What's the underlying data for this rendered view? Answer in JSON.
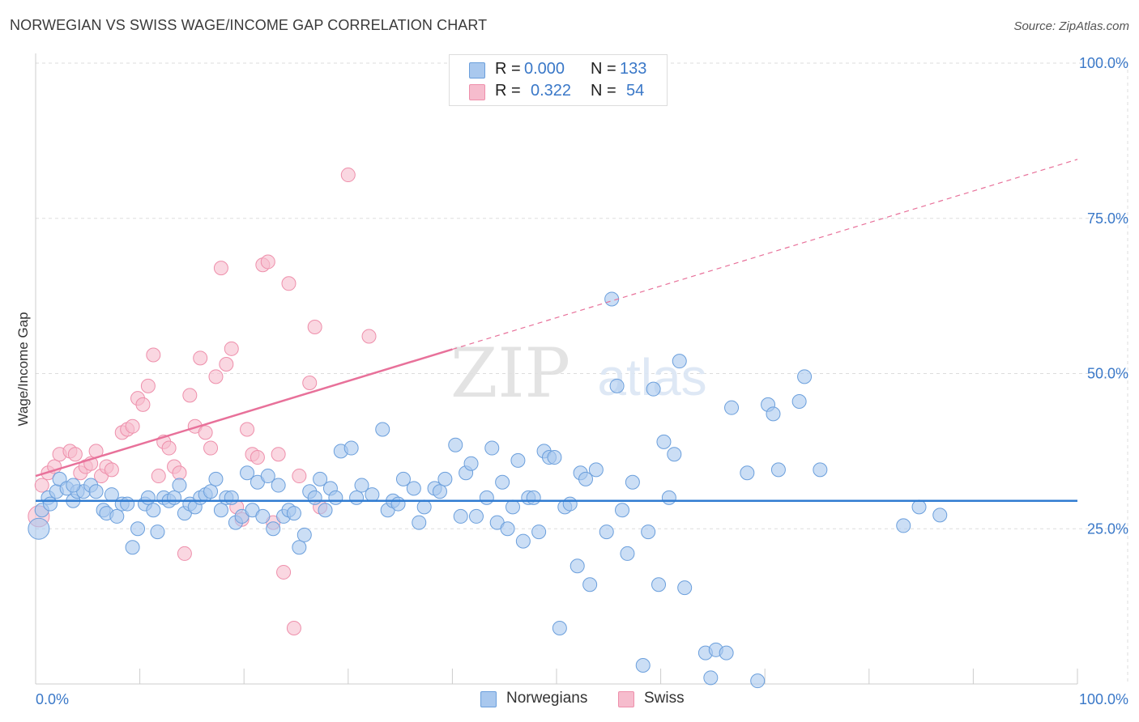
{
  "title": "NORWEGIAN VS SWISS WAGE/INCOME GAP CORRELATION CHART",
  "source": "Source: ZipAtlas.com",
  "watermark": {
    "zip": "ZIP",
    "atlas": "atlas"
  },
  "legend": {
    "rows": [
      {
        "r_label": "R =",
        "r_value": "0.000",
        "n_label": "N =",
        "n_value": "133"
      },
      {
        "r_label": "R =",
        "r_value": "0.322",
        "n_label": "N =",
        "n_value": "54"
      }
    ]
  },
  "bottom_legend": {
    "series1": "Norwegians",
    "series2": "Swiss"
  },
  "colors": {
    "blue_fill": "#a9c8ee",
    "blue_stroke": "#6b9fdc",
    "blue_line": "#2f7bd1",
    "pink_fill": "#f6bccd",
    "pink_stroke": "#ee8fab",
    "pink_line": "#e8719a",
    "axis_text": "#3a78c8",
    "grid": "#dddddd"
  },
  "chart_data": {
    "type": "scatter",
    "title": "NORWEGIAN VS SWISS WAGE/INCOME GAP CORRELATION CHART",
    "xlabel": "",
    "ylabel": "Wage/Income Gap",
    "xlim": [
      0,
      100
    ],
    "ylim": [
      0,
      100
    ],
    "x_tick_labels": [
      "0.0%",
      "100.0%"
    ],
    "y_tick_labels": [
      "25.0%",
      "50.0%",
      "75.0%",
      "100.0%"
    ],
    "y_ticks": [
      25,
      50,
      75,
      100
    ],
    "grid": true,
    "legend_position": "top-center",
    "series": [
      {
        "name": "Norwegians",
        "r": 0.0,
        "n": 133,
        "trend": {
          "x0": 0,
          "y0": 29.5,
          "x1": 100,
          "y1": 29.5,
          "solid_until": 100
        },
        "points": [
          [
            0.3,
            25
          ],
          [
            0.6,
            28
          ],
          [
            1.2,
            30
          ],
          [
            1.4,
            29
          ],
          [
            2,
            31
          ],
          [
            2.3,
            33
          ],
          [
            3,
            31.5
          ],
          [
            3.6,
            29.5
          ],
          [
            4,
            31
          ],
          [
            4.6,
            31
          ],
          [
            5.3,
            32
          ],
          [
            5.8,
            31
          ],
          [
            6.5,
            28
          ],
          [
            6.8,
            27.5
          ],
          [
            7.3,
            30.5
          ],
          [
            7.8,
            27
          ],
          [
            8.3,
            29
          ],
          [
            8.8,
            29
          ],
          [
            9.3,
            22
          ],
          [
            9.8,
            25
          ],
          [
            10.5,
            29
          ],
          [
            10.8,
            30
          ],
          [
            11.3,
            28
          ],
          [
            11.7,
            24.5
          ],
          [
            12.3,
            30
          ],
          [
            12.8,
            29.5
          ],
          [
            13.3,
            30
          ],
          [
            13.8,
            32
          ],
          [
            14.3,
            27.5
          ],
          [
            14.8,
            29
          ],
          [
            15.3,
            28.5
          ],
          [
            15.8,
            30
          ],
          [
            16.3,
            30.5
          ],
          [
            16.8,
            31
          ],
          [
            17.3,
            33
          ],
          [
            17.8,
            28
          ],
          [
            18.3,
            30
          ],
          [
            18.8,
            30
          ],
          [
            19.2,
            26
          ],
          [
            19.8,
            27
          ],
          [
            20.3,
            34
          ],
          [
            20.8,
            28
          ],
          [
            21.3,
            32.5
          ],
          [
            21.8,
            27
          ],
          [
            22.3,
            33.5
          ],
          [
            22.8,
            25
          ],
          [
            23.3,
            32
          ],
          [
            23.8,
            27
          ],
          [
            24.3,
            28
          ],
          [
            24.8,
            27.5
          ],
          [
            25.3,
            22
          ],
          [
            25.8,
            24
          ],
          [
            26.3,
            31
          ],
          [
            26.8,
            30
          ],
          [
            27.3,
            33
          ],
          [
            27.8,
            28
          ],
          [
            28.3,
            31.5
          ],
          [
            28.8,
            30
          ],
          [
            29.3,
            37.5
          ],
          [
            30.3,
            38
          ],
          [
            30.8,
            30
          ],
          [
            31.3,
            32
          ],
          [
            32.3,
            30.5
          ],
          [
            33.3,
            41
          ],
          [
            33.8,
            28
          ],
          [
            34.3,
            29.5
          ],
          [
            34.8,
            29
          ],
          [
            35.3,
            33
          ],
          [
            36.3,
            31.5
          ],
          [
            36.8,
            26
          ],
          [
            37.3,
            28.5
          ],
          [
            38.3,
            31.5
          ],
          [
            38.8,
            31
          ],
          [
            39.3,
            33
          ],
          [
            40.3,
            38.5
          ],
          [
            40.8,
            27
          ],
          [
            41.3,
            34
          ],
          [
            41.8,
            35.5
          ],
          [
            42.3,
            27
          ],
          [
            43.3,
            30
          ],
          [
            43.8,
            38
          ],
          [
            44.3,
            26
          ],
          [
            44.8,
            32.5
          ],
          [
            45.3,
            25
          ],
          [
            45.8,
            28.5
          ],
          [
            46.3,
            36
          ],
          [
            46.8,
            23
          ],
          [
            47.3,
            30
          ],
          [
            47.8,
            30
          ],
          [
            48.3,
            24.5
          ],
          [
            48.8,
            37.5
          ],
          [
            49.3,
            36.5
          ],
          [
            49.8,
            36.5
          ],
          [
            50.3,
            9
          ],
          [
            50.8,
            28.5
          ],
          [
            51.3,
            29
          ],
          [
            52,
            19
          ],
          [
            52.3,
            34
          ],
          [
            52.8,
            33
          ],
          [
            53.2,
            16
          ],
          [
            53.8,
            34.5
          ],
          [
            54.8,
            24.5
          ],
          [
            55.3,
            62
          ],
          [
            55.8,
            48
          ],
          [
            56.3,
            28
          ],
          [
            56.8,
            21
          ],
          [
            57.3,
            32.5
          ],
          [
            58.3,
            3
          ],
          [
            58.8,
            24.5
          ],
          [
            59.3,
            47.5
          ],
          [
            59.8,
            16
          ],
          [
            60.3,
            39
          ],
          [
            60.8,
            30
          ],
          [
            61.3,
            37
          ],
          [
            61.8,
            52
          ],
          [
            62.3,
            15.5
          ],
          [
            64.3,
            5
          ],
          [
            64.8,
            1
          ],
          [
            65.3,
            5.5
          ],
          [
            66.3,
            5
          ],
          [
            66.8,
            44.5
          ],
          [
            68.3,
            34
          ],
          [
            69.3,
            0.5
          ],
          [
            70.3,
            45
          ],
          [
            70.8,
            43.5
          ],
          [
            71.3,
            34.5
          ],
          [
            73.3,
            45.5
          ],
          [
            73.8,
            49.5
          ],
          [
            75.3,
            34.5
          ],
          [
            83.3,
            25.5
          ],
          [
            84.8,
            28.5
          ],
          [
            86.8,
            27.2
          ],
          [
            3.6,
            32
          ]
        ]
      },
      {
        "name": "Swiss",
        "r": 0.322,
        "n": 54,
        "trend": {
          "x0": 0,
          "y0": 33.5,
          "x1": 100,
          "y1": 84.5,
          "solid_until": 40
        },
        "points": [
          [
            0.3,
            27
          ],
          [
            0.6,
            32
          ],
          [
            1.2,
            34
          ],
          [
            1.8,
            35
          ],
          [
            2.3,
            37
          ],
          [
            3.3,
            37.5
          ],
          [
            3.8,
            37
          ],
          [
            4.3,
            34
          ],
          [
            4.8,
            35
          ],
          [
            5.3,
            35.5
          ],
          [
            5.8,
            37.5
          ],
          [
            6.3,
            33.5
          ],
          [
            6.8,
            35
          ],
          [
            7.3,
            34.5
          ],
          [
            8.3,
            40.5
          ],
          [
            8.8,
            41
          ],
          [
            9.3,
            41.5
          ],
          [
            9.8,
            46
          ],
          [
            10.3,
            45
          ],
          [
            10.8,
            48
          ],
          [
            11.3,
            53
          ],
          [
            11.8,
            33.5
          ],
          [
            12.3,
            39
          ],
          [
            12.8,
            38
          ],
          [
            13.3,
            35
          ],
          [
            13.8,
            34
          ],
          [
            14.3,
            21
          ],
          [
            14.8,
            46.5
          ],
          [
            15.3,
            41.5
          ],
          [
            15.8,
            52.5
          ],
          [
            16.3,
            40.5
          ],
          [
            16.8,
            38
          ],
          [
            17.3,
            49.5
          ],
          [
            17.8,
            67
          ],
          [
            18.3,
            51.5
          ],
          [
            18.8,
            54
          ],
          [
            19.3,
            28.5
          ],
          [
            19.8,
            26.5
          ],
          [
            20.3,
            41
          ],
          [
            20.8,
            37
          ],
          [
            21.3,
            36.5
          ],
          [
            21.8,
            67.5
          ],
          [
            22.3,
            68
          ],
          [
            22.8,
            26
          ],
          [
            23.3,
            37
          ],
          [
            23.8,
            18
          ],
          [
            24.3,
            64.5
          ],
          [
            24.8,
            9
          ],
          [
            25.3,
            33.5
          ],
          [
            26.3,
            48.5
          ],
          [
            26.8,
            57.5
          ],
          [
            27.3,
            28.5
          ],
          [
            30,
            82
          ],
          [
            32,
            56
          ]
        ]
      }
    ]
  }
}
